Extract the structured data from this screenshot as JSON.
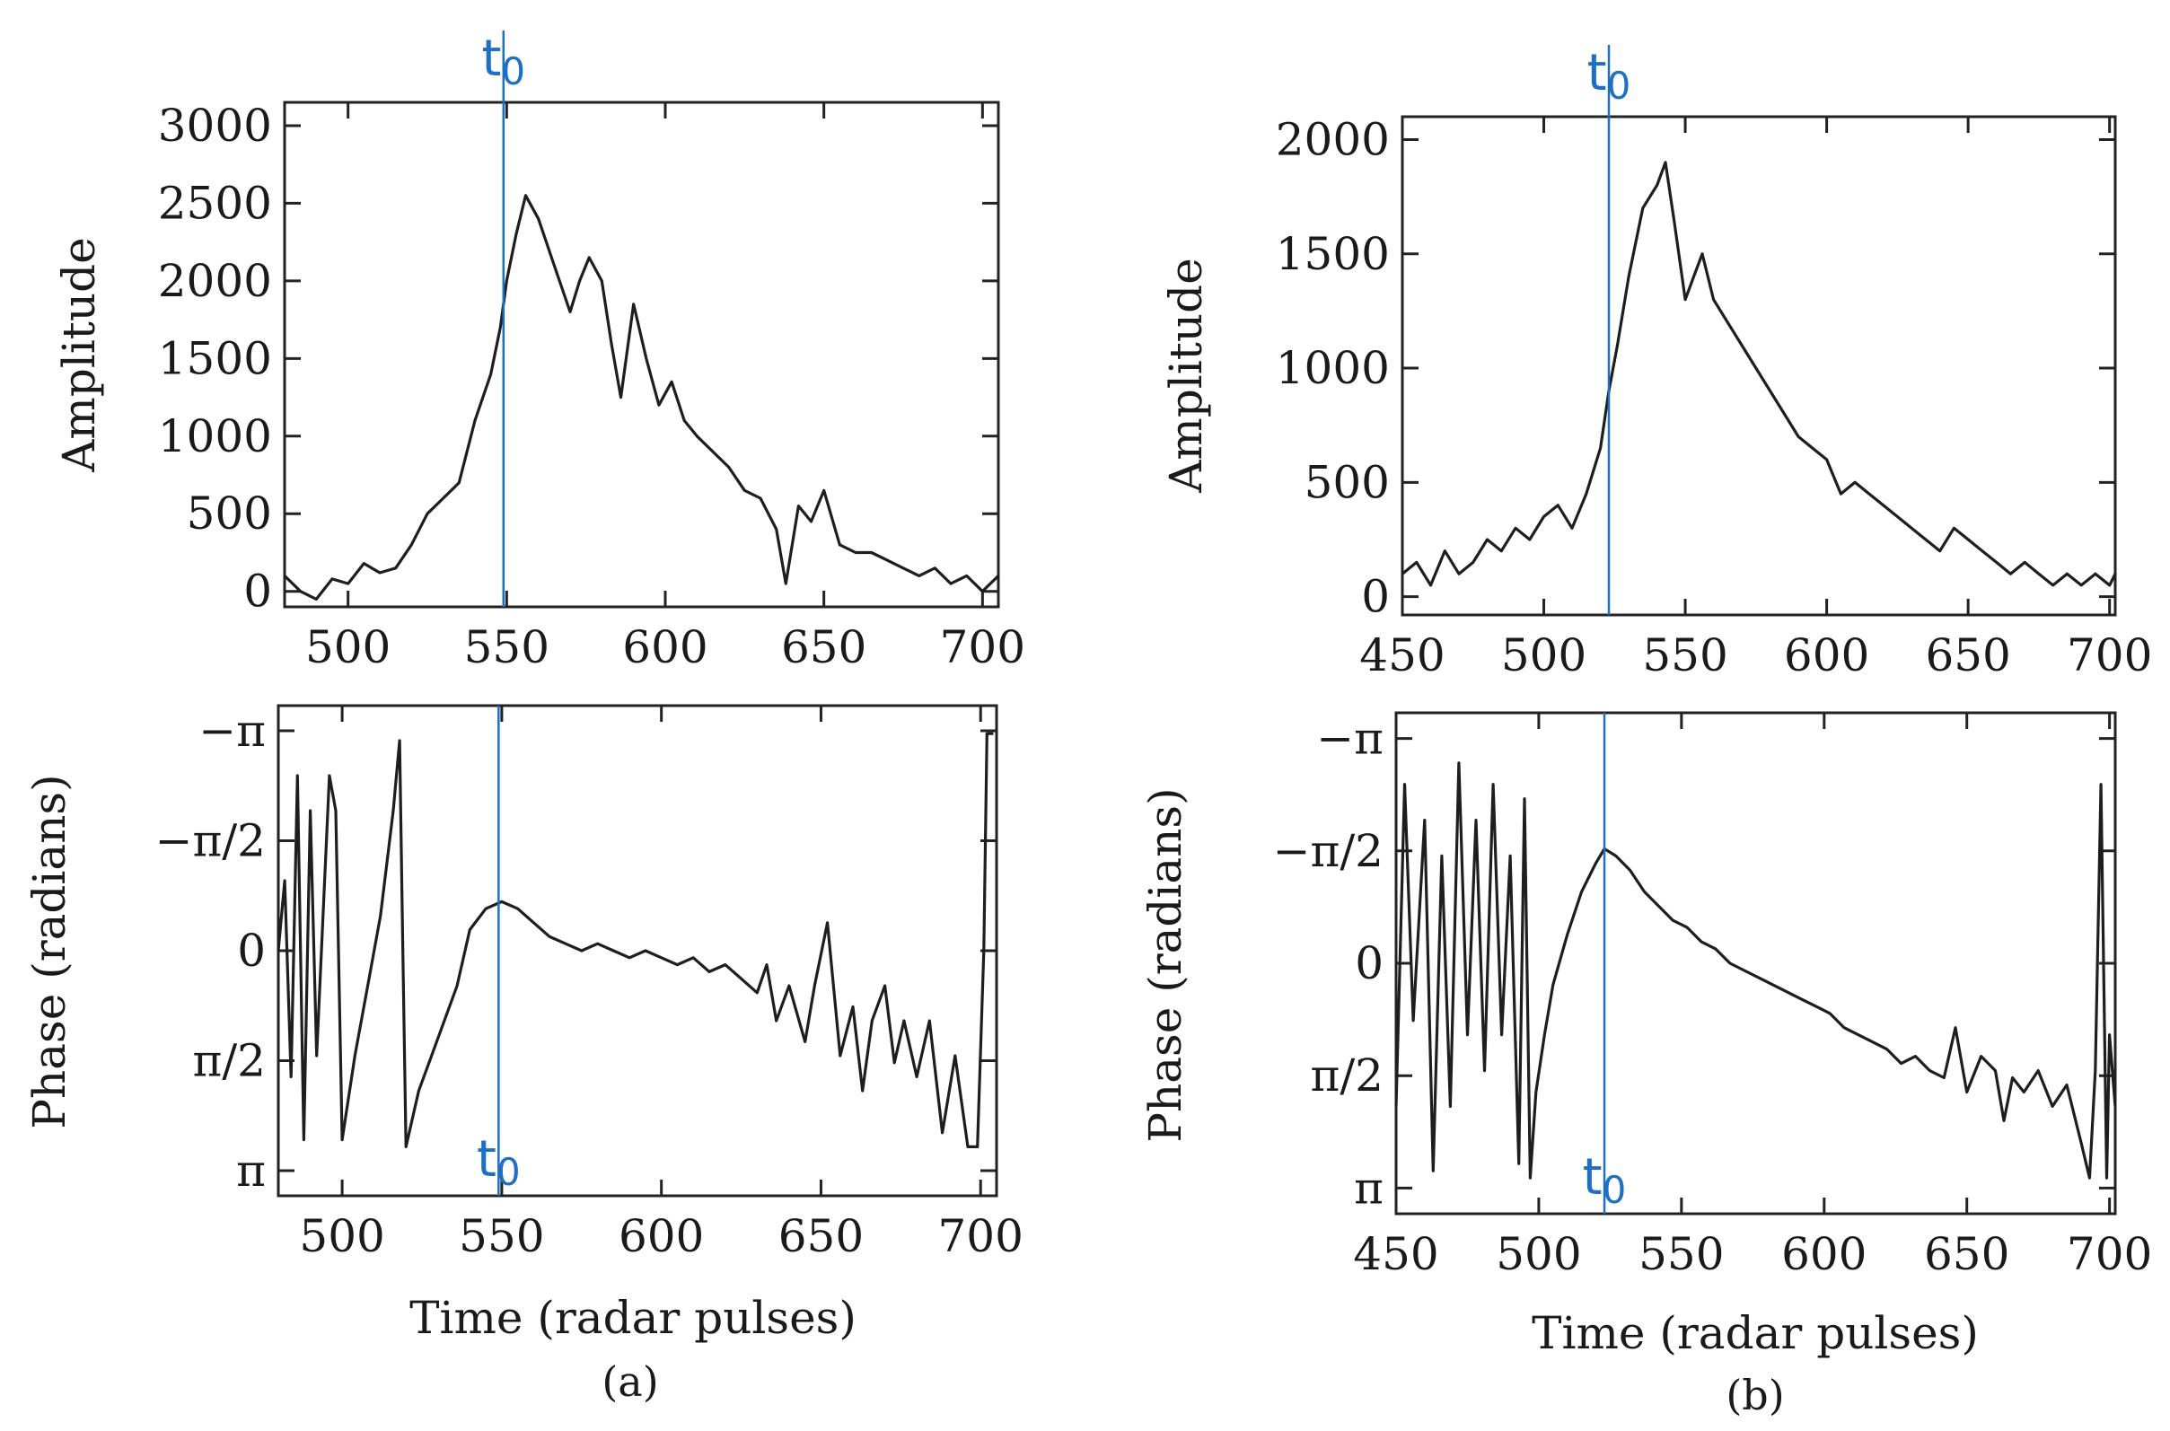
{
  "chart_data": [
    {
      "id": "a-amp",
      "type": "line",
      "panel": "a",
      "ylabel": "Amplitude",
      "xlabel": "",
      "xlim": [
        480,
        705
      ],
      "ylim": [
        -100,
        3150
      ],
      "xticks": [
        500,
        550,
        600,
        650,
        700
      ],
      "yticks": [
        {
          "v": 0,
          "label": "0"
        },
        {
          "v": 500,
          "label": "500"
        },
        {
          "v": 1000,
          "label": "1000"
        },
        {
          "v": 1500,
          "label": "1500"
        },
        {
          "v": 2000,
          "label": "2000"
        },
        {
          "v": 2500,
          "label": "2500"
        },
        {
          "v": 3000,
          "label": "3000"
        }
      ],
      "t0": 549,
      "t0_label": "t0",
      "t0_label_pos": "top",
      "points": [
        [
          480,
          100
        ],
        [
          485,
          0
        ],
        [
          490,
          -50
        ],
        [
          495,
          80
        ],
        [
          500,
          50
        ],
        [
          505,
          180
        ],
        [
          510,
          120
        ],
        [
          515,
          150
        ],
        [
          520,
          300
        ],
        [
          525,
          500
        ],
        [
          530,
          600
        ],
        [
          535,
          700
        ],
        [
          540,
          1100
        ],
        [
          545,
          1400
        ],
        [
          548,
          1700
        ],
        [
          550,
          2000
        ],
        [
          553,
          2300
        ],
        [
          556,
          2550
        ],
        [
          560,
          2400
        ],
        [
          565,
          2100
        ],
        [
          570,
          1800
        ],
        [
          573,
          2000
        ],
        [
          576,
          2150
        ],
        [
          580,
          2000
        ],
        [
          583,
          1600
        ],
        [
          586,
          1250
        ],
        [
          590,
          1850
        ],
        [
          594,
          1500
        ],
        [
          598,
          1200
        ],
        [
          602,
          1350
        ],
        [
          606,
          1100
        ],
        [
          610,
          1000
        ],
        [
          615,
          900
        ],
        [
          620,
          800
        ],
        [
          625,
          650
        ],
        [
          630,
          600
        ],
        [
          635,
          400
        ],
        [
          638,
          50
        ],
        [
          642,
          550
        ],
        [
          646,
          450
        ],
        [
          650,
          650
        ],
        [
          655,
          300
        ],
        [
          660,
          250
        ],
        [
          665,
          250
        ],
        [
          670,
          200
        ],
        [
          675,
          150
        ],
        [
          680,
          100
        ],
        [
          685,
          150
        ],
        [
          690,
          50
        ],
        [
          695,
          100
        ],
        [
          700,
          0
        ],
        [
          705,
          100
        ]
      ]
    },
    {
      "id": "a-phase",
      "type": "line",
      "panel": "a",
      "ylabel": "Phase (radians)",
      "xlabel": "Time (radar pulses)",
      "xlim": [
        480,
        705
      ],
      "ylim": [
        3.5,
        -3.5
      ],
      "xticks": [
        500,
        550,
        600,
        650,
        700
      ],
      "yticks": [
        {
          "v": -3.1416,
          "label": "−π"
        },
        {
          "v": -1.5708,
          "label": "−π/2"
        },
        {
          "v": 0,
          "label": "0"
        },
        {
          "v": 1.5708,
          "label": "π/2"
        },
        {
          "v": 3.1416,
          "label": "π"
        }
      ],
      "t0": 549,
      "t0_label": "t0",
      "t0_label_pos": "bottom",
      "caption": "(a)",
      "points": [
        [
          480,
          0
        ],
        [
          482,
          -1.0
        ],
        [
          484,
          1.8
        ],
        [
          486,
          -2.5
        ],
        [
          488,
          2.7
        ],
        [
          490,
          -2.0
        ],
        [
          492,
          1.5
        ],
        [
          494,
          -0.5
        ],
        [
          496,
          -2.5
        ],
        [
          498,
          -2.0
        ],
        [
          500,
          2.7
        ],
        [
          504,
          1.5
        ],
        [
          508,
          0.5
        ],
        [
          512,
          -0.5
        ],
        [
          516,
          -2.0
        ],
        [
          518,
          -3.0
        ],
        [
          519,
          0
        ],
        [
          520,
          2.8
        ],
        [
          524,
          2.0
        ],
        [
          528,
          1.5
        ],
        [
          532,
          1.0
        ],
        [
          536,
          0.5
        ],
        [
          540,
          -0.3
        ],
        [
          545,
          -0.6
        ],
        [
          550,
          -0.7
        ],
        [
          555,
          -0.6
        ],
        [
          560,
          -0.4
        ],
        [
          565,
          -0.2
        ],
        [
          570,
          -0.1
        ],
        [
          575,
          0
        ],
        [
          580,
          -0.1
        ],
        [
          585,
          0
        ],
        [
          590,
          0.1
        ],
        [
          595,
          0
        ],
        [
          600,
          0.1
        ],
        [
          605,
          0.2
        ],
        [
          610,
          0.1
        ],
        [
          615,
          0.3
        ],
        [
          620,
          0.2
        ],
        [
          625,
          0.4
        ],
        [
          630,
          0.6
        ],
        [
          633,
          0.2
        ],
        [
          636,
          1.0
        ],
        [
          640,
          0.5
        ],
        [
          645,
          1.3
        ],
        [
          648,
          0.5
        ],
        [
          652,
          -0.4
        ],
        [
          656,
          1.5
        ],
        [
          660,
          0.8
        ],
        [
          663,
          2.0
        ],
        [
          666,
          1.0
        ],
        [
          670,
          0.5
        ],
        [
          673,
          1.6
        ],
        [
          676,
          1.0
        ],
        [
          680,
          1.8
        ],
        [
          684,
          1.0
        ],
        [
          688,
          2.6
        ],
        [
          692,
          1.5
        ],
        [
          696,
          2.8
        ],
        [
          699,
          2.8
        ],
        [
          701,
          0
        ],
        [
          702,
          -3.1
        ],
        [
          704,
          -3.1
        ]
      ]
    },
    {
      "id": "b-amp",
      "type": "line",
      "panel": "b",
      "ylabel": "Amplitude",
      "xlabel": "",
      "xlim": [
        450,
        702
      ],
      "ylim": [
        -80,
        2100
      ],
      "xticks": [
        450,
        500,
        550,
        600,
        650,
        700
      ],
      "yticks": [
        {
          "v": 0,
          "label": "0"
        },
        {
          "v": 500,
          "label": "500"
        },
        {
          "v": 1000,
          "label": "1000"
        },
        {
          "v": 1500,
          "label": "1500"
        },
        {
          "v": 2000,
          "label": "2000"
        }
      ],
      "t0": 523,
      "t0_label": "t0",
      "t0_label_pos": "top",
      "points": [
        [
          450,
          100
        ],
        [
          455,
          150
        ],
        [
          460,
          50
        ],
        [
          465,
          200
        ],
        [
          470,
          100
        ],
        [
          475,
          150
        ],
        [
          480,
          250
        ],
        [
          485,
          200
        ],
        [
          490,
          300
        ],
        [
          495,
          250
        ],
        [
          500,
          350
        ],
        [
          505,
          400
        ],
        [
          510,
          300
        ],
        [
          515,
          450
        ],
        [
          520,
          650
        ],
        [
          523,
          900
        ],
        [
          526,
          1100
        ],
        [
          530,
          1400
        ],
        [
          535,
          1700
        ],
        [
          540,
          1800
        ],
        [
          543,
          1900
        ],
        [
          546,
          1650
        ],
        [
          550,
          1300
        ],
        [
          553,
          1400
        ],
        [
          556,
          1500
        ],
        [
          560,
          1300
        ],
        [
          565,
          1200
        ],
        [
          570,
          1100
        ],
        [
          575,
          1000
        ],
        [
          580,
          900
        ],
        [
          585,
          800
        ],
        [
          590,
          700
        ],
        [
          595,
          650
        ],
        [
          600,
          600
        ],
        [
          605,
          450
        ],
        [
          610,
          500
        ],
        [
          615,
          450
        ],
        [
          620,
          400
        ],
        [
          625,
          350
        ],
        [
          630,
          300
        ],
        [
          635,
          250
        ],
        [
          640,
          200
        ],
        [
          645,
          300
        ],
        [
          650,
          250
        ],
        [
          655,
          200
        ],
        [
          660,
          150
        ],
        [
          665,
          100
        ],
        [
          670,
          150
        ],
        [
          675,
          100
        ],
        [
          680,
          50
        ],
        [
          685,
          100
        ],
        [
          690,
          50
        ],
        [
          695,
          100
        ],
        [
          700,
          50
        ],
        [
          702,
          100
        ]
      ]
    },
    {
      "id": "b-phase",
      "type": "line",
      "panel": "b",
      "ylabel": "Phase (radians)",
      "xlabel": "Time (radar pulses)",
      "xlim": [
        450,
        702
      ],
      "ylim": [
        3.5,
        -3.5
      ],
      "xticks": [
        450,
        500,
        550,
        600,
        650,
        700
      ],
      "yticks": [
        {
          "v": -3.1416,
          "label": "−π"
        },
        {
          "v": -1.5708,
          "label": "−π/2"
        },
        {
          "v": 0,
          "label": "0"
        },
        {
          "v": 1.5708,
          "label": "π/2"
        },
        {
          "v": 3.1416,
          "label": "π"
        }
      ],
      "t0": 523,
      "t0_label": "t0",
      "t0_label_pos": "bottom",
      "caption": "(b)",
      "points": [
        [
          450,
          2.0
        ],
        [
          453,
          -2.5
        ],
        [
          456,
          0.8
        ],
        [
          460,
          -2.0
        ],
        [
          463,
          2.9
        ],
        [
          466,
          -1.5
        ],
        [
          469,
          2.0
        ],
        [
          472,
          -2.8
        ],
        [
          475,
          1.0
        ],
        [
          478,
          -2.0
        ],
        [
          481,
          1.5
        ],
        [
          484,
          -2.5
        ],
        [
          487,
          1.0
        ],
        [
          490,
          -1.5
        ],
        [
          493,
          2.8
        ],
        [
          495,
          -2.3
        ],
        [
          497,
          3.0
        ],
        [
          499,
          1.8
        ],
        [
          502,
          1.0
        ],
        [
          505,
          0.3
        ],
        [
          510,
          -0.4
        ],
        [
          515,
          -1.0
        ],
        [
          520,
          -1.4
        ],
        [
          523,
          -1.6
        ],
        [
          527,
          -1.5
        ],
        [
          532,
          -1.3
        ],
        [
          537,
          -1.0
        ],
        [
          542,
          -0.8
        ],
        [
          547,
          -0.6
        ],
        [
          552,
          -0.5
        ],
        [
          557,
          -0.3
        ],
        [
          562,
          -0.2
        ],
        [
          567,
          0
        ],
        [
          572,
          0.1
        ],
        [
          577,
          0.2
        ],
        [
          582,
          0.3
        ],
        [
          587,
          0.4
        ],
        [
          592,
          0.5
        ],
        [
          597,
          0.6
        ],
        [
          602,
          0.7
        ],
        [
          607,
          0.9
        ],
        [
          612,
          1.0
        ],
        [
          617,
          1.1
        ],
        [
          622,
          1.2
        ],
        [
          627,
          1.4
        ],
        [
          632,
          1.3
        ],
        [
          637,
          1.5
        ],
        [
          642,
          1.6
        ],
        [
          646,
          0.9
        ],
        [
          650,
          1.8
        ],
        [
          655,
          1.3
        ],
        [
          660,
          1.5
        ],
        [
          663,
          2.2
        ],
        [
          666,
          1.6
        ],
        [
          670,
          1.8
        ],
        [
          675,
          1.5
        ],
        [
          680,
          2.0
        ],
        [
          685,
          1.7
        ],
        [
          690,
          2.5
        ],
        [
          693,
          3.0
        ],
        [
          695,
          1.5
        ],
        [
          697,
          -2.5
        ],
        [
          699,
          3.0
        ],
        [
          700,
          1.0
        ],
        [
          702,
          2.0
        ]
      ]
    }
  ]
}
